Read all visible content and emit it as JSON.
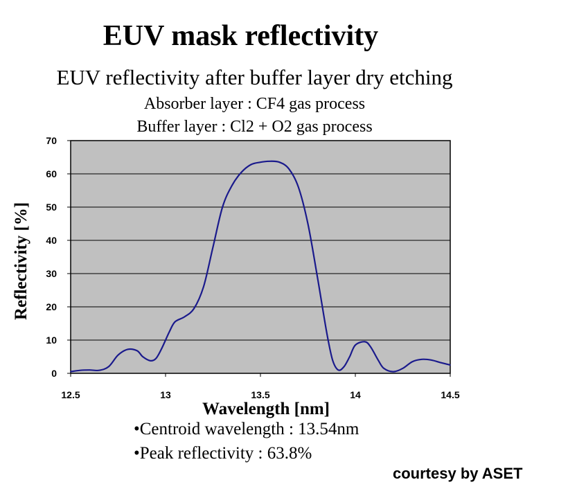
{
  "page": {
    "title": "EUV mask reflectivity",
    "subtitle": "EUV reflectivity after buffer layer dry etching",
    "process_lines": [
      "Absorber layer : CF4 gas process",
      "Buffer layer : Cl2 + O2 gas process"
    ],
    "notes": [
      "•Centroid wavelength : 13.54nm",
      "•Peak reflectivity : 63.8%"
    ],
    "credit": "courtesy by ASET"
  },
  "chart_data": {
    "type": "line",
    "xlabel": "Wavelength [nm]",
    "ylabel": "Reflectivity [%]",
    "xlim": [
      12.5,
      14.5
    ],
    "ylim": [
      0,
      70
    ],
    "x_ticks": [
      12.5,
      13,
      13.5,
      14,
      14.5
    ],
    "x_tick_labels": [
      "12.5",
      "13",
      "13.5",
      "14",
      "14.5"
    ],
    "y_ticks": [
      0,
      10,
      20,
      30,
      40,
      50,
      60,
      70
    ],
    "y_tick_labels": [
      "0",
      "10",
      "20",
      "30",
      "40",
      "50",
      "60",
      "70"
    ],
    "grid": "horizontal",
    "plot_background": "#c0c0c0",
    "line_color": "#1a1a8c",
    "series": [
      {
        "x": [
          12.5,
          12.55,
          12.6,
          12.65,
          12.7,
          12.75,
          12.8,
          12.85,
          12.88,
          12.92,
          12.95,
          12.98,
          13.02,
          13.05,
          13.1,
          13.15,
          13.2,
          13.25,
          13.3,
          13.35,
          13.4,
          13.45,
          13.5,
          13.55,
          13.6,
          13.65,
          13.7,
          13.75,
          13.8,
          13.85,
          13.88,
          13.91,
          13.94,
          13.97,
          14.0,
          14.05,
          14.08,
          14.12,
          14.15,
          14.2,
          14.25,
          14.3,
          14.35,
          14.4,
          14.45,
          14.5
        ],
        "y": [
          0.5,
          0.9,
          1.0,
          0.9,
          2.0,
          5.5,
          7.2,
          6.8,
          5.0,
          3.8,
          4.5,
          7.5,
          12.5,
          15.5,
          17.0,
          19.5,
          26.0,
          38.0,
          50.0,
          56.5,
          60.5,
          62.8,
          63.5,
          63.8,
          63.5,
          61.5,
          56.0,
          45.0,
          29.0,
          12.0,
          4.0,
          1.0,
          2.0,
          5.0,
          8.5,
          9.5,
          8.0,
          4.0,
          1.5,
          0.5,
          1.5,
          3.5,
          4.2,
          4.0,
          3.2,
          2.5
        ]
      }
    ]
  }
}
